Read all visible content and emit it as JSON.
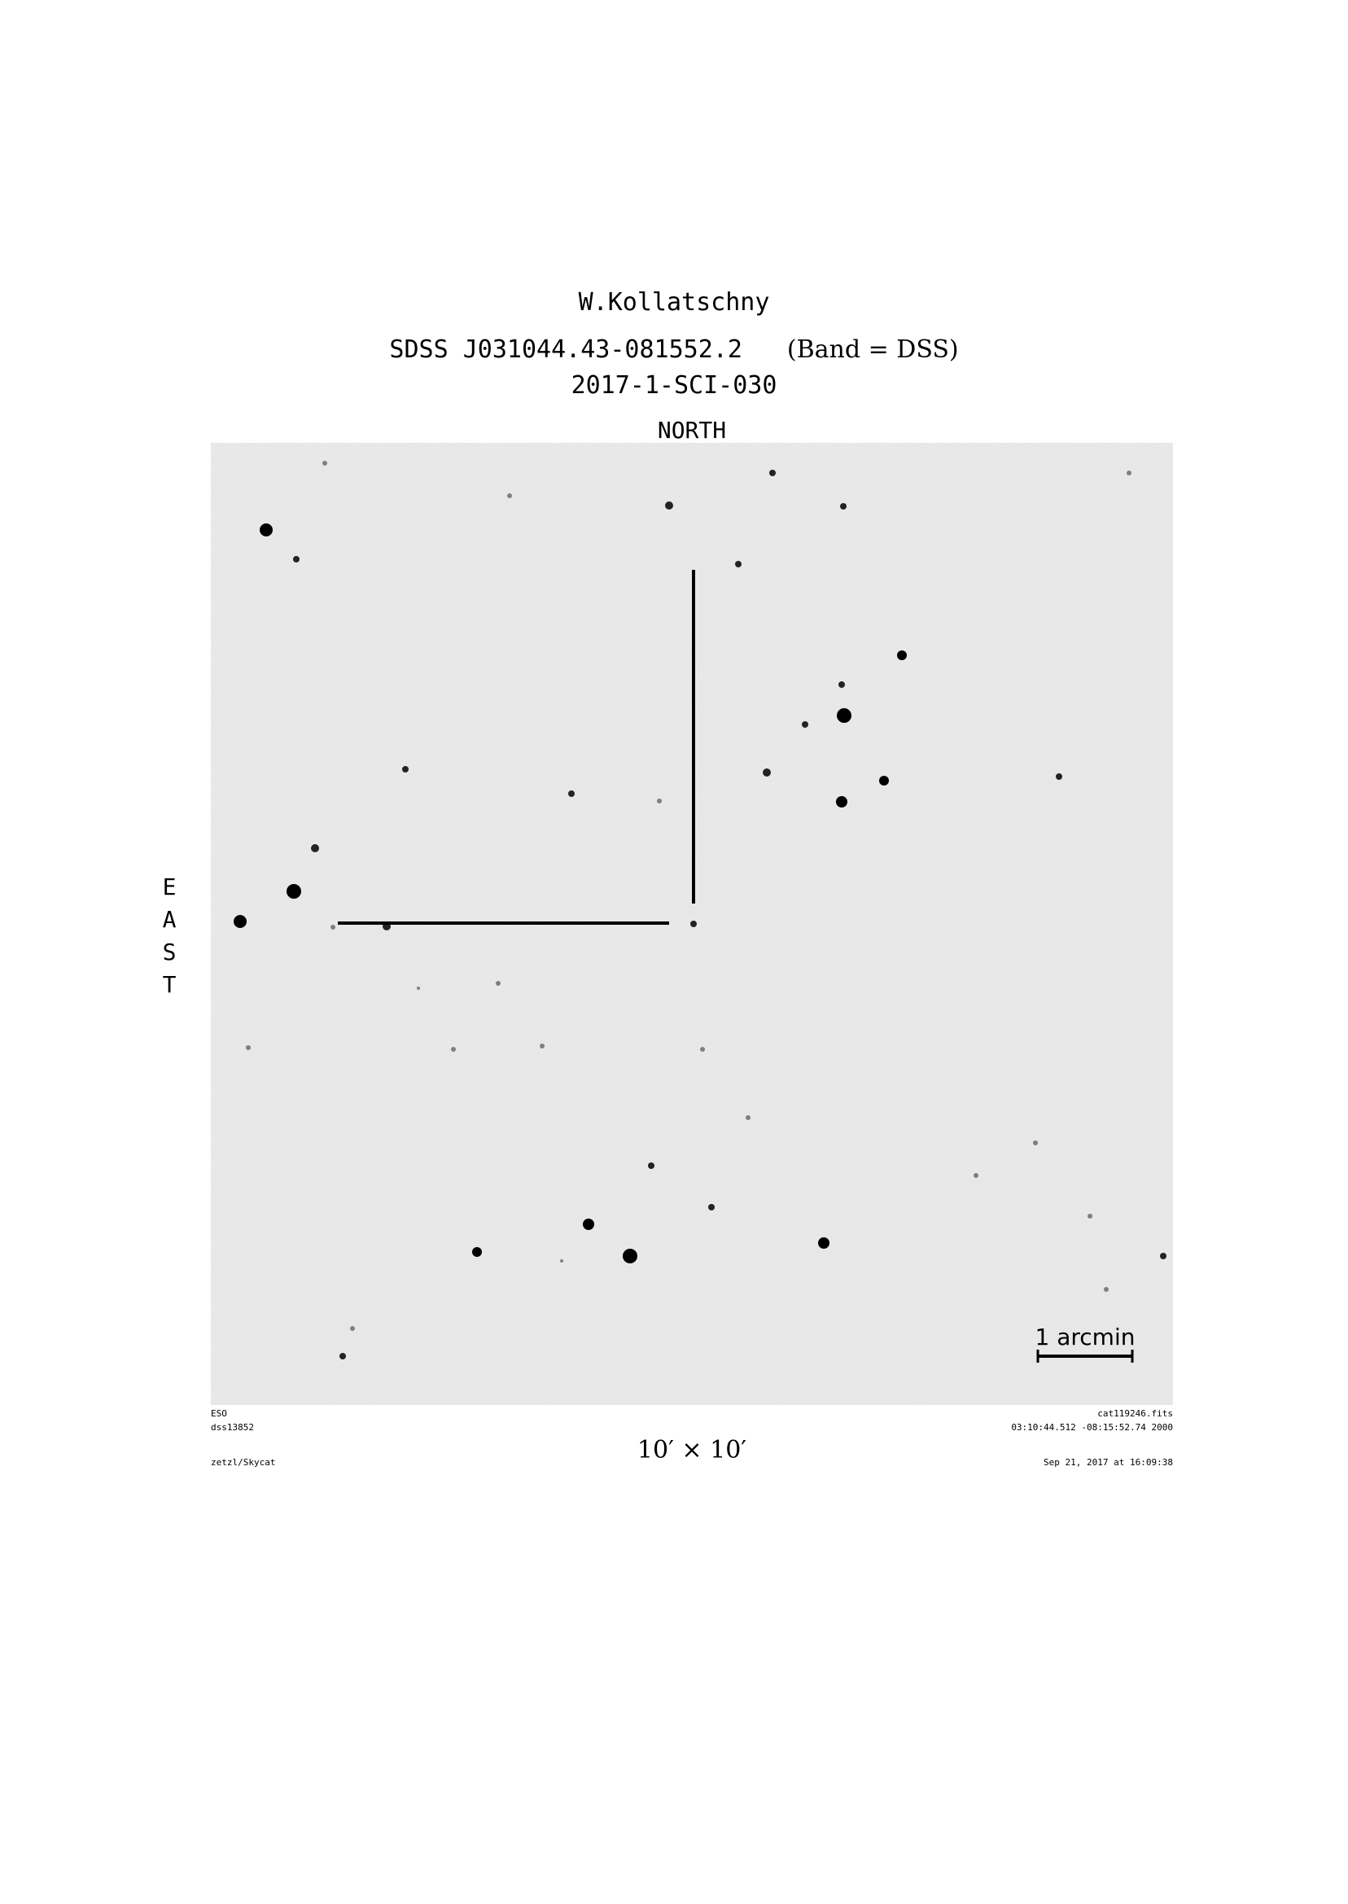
{
  "header": {
    "observer": "W.Kollatschny",
    "target": "SDSS J031044.43-081552.2",
    "band": "(Band = DSS)",
    "program_id": "2017-1-SCI-030"
  },
  "orientation": {
    "north": "NORTH",
    "east": [
      "E",
      "A",
      "S",
      "T"
    ]
  },
  "image": {
    "scale_bar_label": "1 arcmin",
    "field_of_view": "10′ × 10′",
    "colors": {
      "sky": "#ececec",
      "star": "#000000",
      "marker": "#000000"
    }
  },
  "footer": {
    "left": [
      "ESO",
      "dss13852",
      "zetzl/Skycat"
    ],
    "right": [
      "cat119246.fits",
      "03:10:44.512 -08:15:52.74 2000",
      "Sep 21, 2017 at 16:09:38"
    ]
  }
}
